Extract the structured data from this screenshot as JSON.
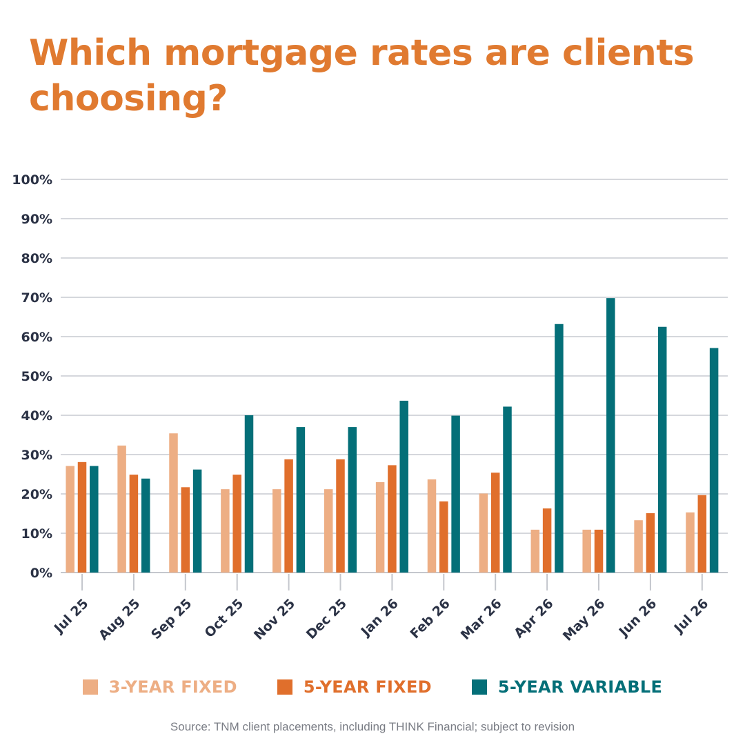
{
  "title": "Which mortgage rates are clients choosing?",
  "source": "Source: TNM client placements, including THINK Financial; subject to revision",
  "colors": {
    "three_year_fixed": "#edae84",
    "five_year_fixed": "#e06f2c",
    "five_year_variable": "#046f78",
    "title": "#e07a30",
    "grid": "#d5d7dc",
    "axis_text": "#2b3245"
  },
  "chart_data": {
    "type": "bar",
    "title": "Which mortgage rates are clients choosing?",
    "xlabel": "",
    "ylabel": "",
    "ylim": [
      0,
      100
    ],
    "yticks": [
      "0%",
      "10%",
      "20%",
      "30%",
      "40%",
      "50%",
      "60%",
      "70%",
      "80%",
      "90%",
      "100%"
    ],
    "grid": "horizontal",
    "legend_position": "bottom",
    "categories": [
      "Jul 25",
      "Aug 25",
      "Sep 25",
      "Oct 25",
      "Nov 25",
      "Dec 25",
      "Jan 26",
      "Feb 26",
      "Mar 26",
      "Apr 26",
      "May 26",
      "Jun 26",
      "Jul 26"
    ],
    "series": [
      {
        "name": "3-YEAR FIXED",
        "color": "#edae84",
        "values": [
          27.1,
          32.3,
          35.4,
          21.2,
          21.2,
          21.2,
          23,
          23.7,
          20.1,
          10.9,
          10.9,
          13.3,
          15.3
        ]
      },
      {
        "name": "5-YEAR FIXED",
        "color": "#e06f2c",
        "values": [
          28.1,
          24.9,
          21.7,
          24.9,
          28.8,
          28.8,
          27.3,
          18.1,
          25.4,
          16.3,
          10.9,
          15.1,
          19.7
        ]
      },
      {
        "name": "5-YEAR VARIABLE",
        "color": "#046f78",
        "values": [
          27.1,
          23.9,
          26.2,
          40,
          37,
          37,
          43.7,
          39.9,
          42.2,
          63.2,
          69.8,
          62.5,
          57.1
        ]
      }
    ]
  }
}
